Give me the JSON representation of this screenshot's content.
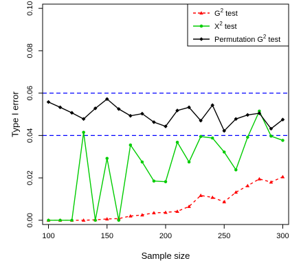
{
  "chart_data": {
    "type": "line",
    "xlabel": "Sample size",
    "ylabel": "Type  I error",
    "xlim": [
      95,
      305
    ],
    "ylim": [
      -0.002,
      0.102
    ],
    "xticks": [
      100,
      150,
      200,
      250,
      300
    ],
    "yticks": [
      0.0,
      0.02,
      0.04,
      0.06,
      0.08,
      0.1
    ],
    "ytick_labels": [
      "0.00",
      "0.02",
      "0.04",
      "0.06",
      "0.08",
      "0.10"
    ],
    "reference_lines": [
      {
        "y": 0.06,
        "color": "#0000ff",
        "style": "dashed"
      },
      {
        "y": 0.04,
        "color": "#0000ff",
        "style": "dashed"
      }
    ],
    "x": [
      100,
      110,
      120,
      130,
      140,
      150,
      160,
      170,
      180,
      190,
      200,
      210,
      220,
      230,
      240,
      250,
      260,
      270,
      280,
      290,
      300
    ],
    "series": [
      {
        "name": "G2 test",
        "legend_main": "G",
        "legend_sup": "2",
        "legend_rest": " test",
        "color": "#ff0000",
        "line_style": "dashed",
        "marker": "triangle",
        "values": [
          0.0,
          0.0,
          0.0,
          0.0,
          0.0002,
          0.0006,
          0.0008,
          0.002,
          0.0025,
          0.0035,
          0.0037,
          0.0042,
          0.0065,
          0.0117,
          0.0108,
          0.0087,
          0.0132,
          0.0163,
          0.0195,
          0.018,
          0.0205
        ]
      },
      {
        "name": "X2 test",
        "legend_main": "X",
        "legend_sup": "2",
        "legend_rest": " test",
        "color": "#00cc00",
        "line_style": "solid",
        "marker": "circle",
        "values": [
          0.0,
          0.0,
          0.0,
          0.0415,
          0.0,
          0.0292,
          0.0,
          0.0355,
          0.0275,
          0.0185,
          0.0182,
          0.0368,
          0.0275,
          0.0395,
          0.0388,
          0.0322,
          0.0238,
          0.0392,
          0.0515,
          0.0397,
          0.0377
        ]
      },
      {
        "name": "Permutation G2 test",
        "legend_main": "Permutation G",
        "legend_sup": "2",
        "legend_rest": " test",
        "color": "#000000",
        "line_style": "solid",
        "marker": "diamond",
        "values": [
          0.0558,
          0.0533,
          0.0507,
          0.0478,
          0.0528,
          0.0572,
          0.0525,
          0.0493,
          0.0503,
          0.0463,
          0.0443,
          0.0518,
          0.0533,
          0.047,
          0.0543,
          0.0422,
          0.0478,
          0.0497,
          0.0505,
          0.0432,
          0.0475
        ]
      }
    ],
    "legend_position": "top-right",
    "grid": false
  }
}
